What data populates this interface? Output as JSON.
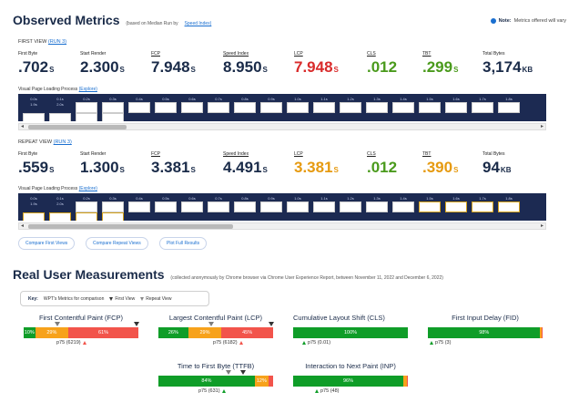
{
  "header": {
    "title": "Observed Metrics",
    "based_on": "(based on Median Run by",
    "speed_index_link": "Speed Index)",
    "note_label": "Note:",
    "note_text": "Metrics offered will vary"
  },
  "first_view": {
    "label": "FIRST VIEW",
    "run_link": "(RUN 3)",
    "metrics": [
      {
        "label": "First Byte",
        "value": ".702",
        "unit": "S",
        "color": "#1a2b49"
      },
      {
        "label": "Start Render",
        "value": "2.300",
        "unit": "S",
        "color": "#1a2b49"
      },
      {
        "label": "FCP",
        "value": "7.948",
        "unit": "S",
        "color": "#1a2b49"
      },
      {
        "label": "Speed Index",
        "value": "8.950",
        "unit": "S",
        "color": "#1a2b49"
      },
      {
        "label": "LCP",
        "value": "7.948",
        "unit": "S",
        "color": "#d92b2b"
      },
      {
        "label": "CLS",
        "value": ".012",
        "unit": "",
        "color": "#4a9a1c"
      },
      {
        "label": "TBT",
        "value": ".299",
        "unit": "S",
        "color": "#4a9a1c"
      },
      {
        "label": "Total Bytes",
        "value": "3,174",
        "unit": "KB",
        "color": "#1a2b49"
      }
    ],
    "visual_progress_label": "Visual Page Loading Process",
    "explore_link": "(Explore)",
    "frame_times": [
      "0.0s",
      "0.1s",
      "0.2s",
      "0.3s",
      "0.4s",
      "0.5s",
      "0.6s",
      "0.7s",
      "0.8s",
      "0.9s",
      "1.0s",
      "1.1s",
      "1.2s",
      "1.3s",
      "1.4s",
      "1.5s",
      "1.6s",
      "1.7s",
      "1.8s",
      "1.9s",
      "2.0s"
    ]
  },
  "repeat_view": {
    "label": "REPEAT VIEW",
    "run_link": "(RUN 3)",
    "metrics": [
      {
        "label": "First Byte",
        "value": ".559",
        "unit": "S",
        "color": "#1a2b49"
      },
      {
        "label": "Start Render",
        "value": "1.300",
        "unit": "S",
        "color": "#1a2b49"
      },
      {
        "label": "FCP",
        "value": "3.381",
        "unit": "S",
        "color": "#1a2b49"
      },
      {
        "label": "Speed Index",
        "value": "4.491",
        "unit": "S",
        "color": "#1a2b49"
      },
      {
        "label": "LCP",
        "value": "3.381",
        "unit": "S",
        "color": "#e69a10"
      },
      {
        "label": "CLS",
        "value": ".012",
        "unit": "",
        "color": "#4a9a1c"
      },
      {
        "label": "TBT",
        "value": ".390",
        "unit": "S",
        "color": "#e69a10"
      },
      {
        "label": "Total Bytes",
        "value": "94",
        "unit": "KB",
        "color": "#1a2b49"
      }
    ],
    "visual_progress_label": "Visual Page Loading Process",
    "explore_link": "(Explore)",
    "frame_times": [
      "0.0s",
      "0.1s",
      "0.2s",
      "0.3s",
      "0.4s",
      "0.5s",
      "0.6s",
      "0.7s",
      "0.8s",
      "0.9s",
      "1.0s",
      "1.1s",
      "1.2s",
      "1.3s",
      "1.4s",
      "1.5s",
      "1.6s",
      "1.7s",
      "1.8s",
      "1.9s",
      "2.0s"
    ]
  },
  "buttons": {
    "compare_first": "Compare First Views",
    "compare_repeat": "Compare Repeat Views",
    "plot_full": "Plot Full Results"
  },
  "rum": {
    "title": "Real User Measurements",
    "note": "(collected anonymously by Chrome browser via Chrome User Experience Report, between November 11, 2022 and December 6, 2022)",
    "key_label": "Key:",
    "key_text": "WPT's Metrics for comparison",
    "key_first": "First View",
    "key_repeat": "Repeat View",
    "fcp": {
      "label": "First Contentful Paint (FCP)",
      "good": "10%",
      "ni": "29%",
      "poor": "61%",
      "good_fraction": 0.1,
      "ni_fraction": 0.29,
      "poor_fraction": 0.61,
      "p75": "p75 (6219)"
    },
    "lcp": {
      "label": "Largest Contentful Paint (LCP)",
      "good": "26%",
      "ni": "29%",
      "poor": "45%",
      "good_fraction": 0.26,
      "ni_fraction": 0.29,
      "poor_fraction": 0.45,
      "p75": "p75 (6182)"
    },
    "cls": {
      "label": "Cumulative Layout Shift (CLS)",
      "good": "100%",
      "good_fraction": 1.0,
      "p75": "p75 (0.01)"
    },
    "fid": {
      "label": "First Input Delay (FID)",
      "good": "98%",
      "good_fraction": 0.98,
      "ni_fraction": 0.01,
      "poor_fraction": 0.01,
      "p75": "p75 (3)"
    },
    "ttfb": {
      "label": "Time to First Byte (TTFB)",
      "good": "84%",
      "ni": "12%",
      "good_fraction": 0.84,
      "ni_fraction": 0.12,
      "poor_fraction": 0.04,
      "p75": "p75 (631)"
    },
    "inp": {
      "label": "Interaction to Next Paint (INP)",
      "good": "96%",
      "good_fraction": 0.96,
      "ni_fraction": 0.03,
      "poor_fraction": 0.01,
      "p75": "p75 (48)"
    }
  },
  "colors": {
    "good": "#0f9d28",
    "needs_improvement": "#f7a21b",
    "poor": "#f2544b",
    "filmstrip_bg": "#1c2a52",
    "link": "#1a6fd0"
  }
}
